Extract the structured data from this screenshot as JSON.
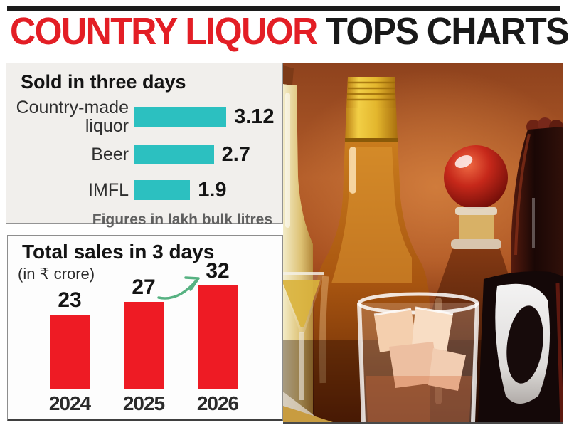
{
  "header": {
    "title_red": "COUNTRY LIQUOR",
    "title_black": " TOPS CHARTS"
  },
  "colors": {
    "accent_red": "#e31e25",
    "headline_black": "#191919",
    "teal_bar": "#2cc0c0",
    "red_bar": "#ee1b24",
    "green_arrow": "#57b282",
    "panel1_bg": "#f1efec"
  },
  "chart_data": [
    {
      "type": "bar",
      "orientation": "horizontal",
      "title": "Sold in three days",
      "categories": [
        "Country-made liquor",
        "Beer",
        "IMFL"
      ],
      "values": [
        3.12,
        2.7,
        1.9
      ],
      "note": "Figures in lakh bulk litres",
      "bar_color": "#2cc0c0",
      "xlim": [
        0,
        3.5
      ],
      "grid": false,
      "value_labels_position": "right-of-bar"
    },
    {
      "type": "bar",
      "orientation": "vertical",
      "title": "Total sales in 3 days",
      "subtitle": "(in ₹ crore)",
      "categories": [
        "2024",
        "2025",
        "2026"
      ],
      "values": [
        23,
        27,
        32
      ],
      "bar_color": "#ee1b24",
      "ylim": [
        0,
        35
      ],
      "grid": false,
      "annotation": "green rising arrow between 2025 bar and 32 label",
      "value_labels_position": "above-bar"
    }
  ],
  "photo": {
    "description": "Assorted liquor bottles: gold-capped whisky bottle, decanter with red ball stopper, dark beer bottle, cocktail glass and whisky tumbler with ice on rust-orange background"
  }
}
